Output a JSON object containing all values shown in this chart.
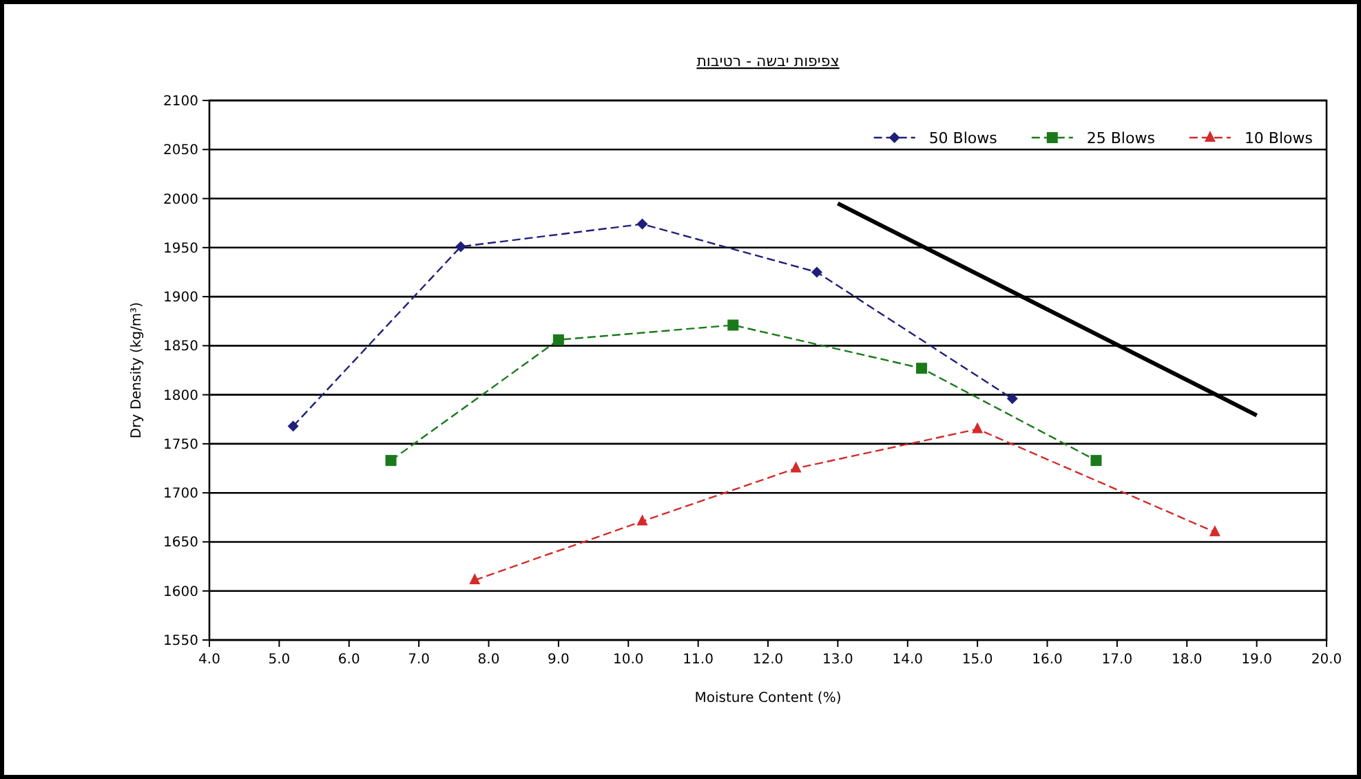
{
  "chart_data": {
    "type": "line",
    "title": "צפיפות יבשה - רטיבות",
    "xlabel": "Moisture Content (%)",
    "ylabel": "Dry Density (kg/m³)",
    "xlim": [
      4.0,
      20.0
    ],
    "xticks": [
      {
        "value": 4,
        "label": "4.0"
      },
      {
        "value": 5,
        "label": "5.0"
      },
      {
        "value": 6,
        "label": "6.0"
      },
      {
        "value": 7,
        "label": "7.0"
      },
      {
        "value": 8,
        "label": "8.0"
      },
      {
        "value": 9,
        "label": "9.0"
      },
      {
        "value": 10,
        "label": "10.0"
      },
      {
        "value": 11,
        "label": "11.0"
      },
      {
        "value": 12,
        "label": "12.0"
      },
      {
        "value": 13,
        "label": "13.0"
      },
      {
        "value": 14,
        "label": "14.0"
      },
      {
        "value": 15,
        "label": "15.0"
      },
      {
        "value": 16,
        "label": "16.0"
      },
      {
        "value": 17,
        "label": "17.0"
      },
      {
        "value": 18,
        "label": "18.0"
      },
      {
        "value": 19,
        "label": "19.0"
      },
      {
        "value": 20,
        "label": "20.0"
      }
    ],
    "ylim": [
      1550,
      2100
    ],
    "yticks": [
      1550,
      1600,
      1650,
      1700,
      1750,
      1800,
      1850,
      1900,
      1950,
      2000,
      2050,
      2100
    ],
    "grid": "y",
    "legend": "top right",
    "line_style": "dashed",
    "series": [
      {
        "name": "50 Blows",
        "color": "#1f1f7a",
        "marker": "diamond",
        "x": [
          5.2,
          7.6,
          10.2,
          12.7,
          15.5
        ],
        "values": [
          1768,
          1951,
          1974,
          1925,
          1796
        ]
      },
      {
        "name": "25 Blows",
        "color": "#1a7a1a",
        "marker": "square",
        "x": [
          6.6,
          9.0,
          11.5,
          14.2,
          16.7
        ],
        "values": [
          1733,
          1856,
          1871,
          1827,
          1733
        ]
      },
      {
        "name": "10 Blows",
        "color": "#d42a2a",
        "marker": "triangle",
        "x": [
          7.8,
          10.2,
          12.4,
          15.0,
          18.4
        ],
        "values": [
          1611,
          1671,
          1725,
          1765,
          1660
        ]
      },
      {
        "color": "#000000",
        "marker": "none",
        "line_style": "solid",
        "x": [
          13.0,
          19.0
        ],
        "values": [
          1995,
          1779
        ]
      }
    ]
  }
}
